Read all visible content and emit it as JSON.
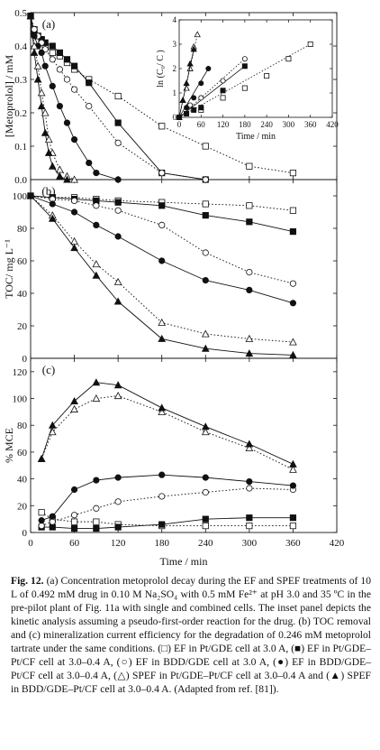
{
  "caption": {
    "label": "Fig. 12.",
    "text": "(a) Concentration metoprolol decay during the EF and SPEF treatments of 10 L of 0.492 mM drug in 0.10 M Na₂SO₄ with 0.5 mM Fe²⁺ at pH 3.0 and 35 ºC in the pre-pilot plant of Fig. 11a with single and combined cells. The inset panel depicts the kinetic analysis assuming a pseudo-first-order reaction for the drug. (b) TOC removal and (c) mineralization current efficiency for the degradation of 0.246 mM metoprolol tartrate under the same conditions. (□) EF in Pt/GDE cell at 3.0 A, (■) EF in Pt/GDE–Pt/CF cell at 3.0–0.4 A, (○) EF in BDD/GDE cell at 3.0 A, (●) EF in BDD/GDE–Pt/CF cell at 3.0–0.4 A, (△) SPEF in Pt/GDE–Pt/CF cell at 3.0–0.4 A and (▲) SPEF in BDD/GDE–Pt/CF cell at 3.0–0.4 A. (Adapted from ref. [81])."
  },
  "chart_data": [
    {
      "panel": "(a)",
      "type": "line",
      "ylabel": "[Metoprolol] / mM",
      "xlim": [
        0,
        420
      ],
      "ylim": [
        0,
        0.5
      ],
      "xticks": [],
      "yticks": [
        "0.0",
        "0.1",
        "0.2",
        "0.3",
        "0.4",
        "0.5"
      ],
      "series": [
        {
          "marker": "square-open",
          "line": "dotted",
          "x": [
            0,
            5,
            10,
            15,
            20,
            30,
            40,
            50,
            60,
            80,
            120,
            180,
            240,
            300,
            360
          ],
          "y": [
            0.49,
            0.45,
            0.43,
            0.42,
            0.4,
            0.38,
            0.37,
            0.35,
            0.33,
            0.3,
            0.25,
            0.16,
            0.1,
            0.04,
            0.02
          ]
        },
        {
          "marker": "square-filled",
          "line": "solid",
          "x": [
            0,
            5,
            10,
            15,
            20,
            30,
            40,
            50,
            60,
            80,
            120,
            180,
            240
          ],
          "y": [
            0.49,
            0.44,
            0.43,
            0.42,
            0.41,
            0.4,
            0.38,
            0.36,
            0.34,
            0.29,
            0.17,
            0.02,
            0.0
          ]
        },
        {
          "marker": "circle-open",
          "line": "dotted",
          "x": [
            0,
            5,
            10,
            15,
            20,
            30,
            40,
            50,
            60,
            80,
            120,
            180,
            240
          ],
          "y": [
            0.49,
            0.45,
            0.43,
            0.41,
            0.39,
            0.36,
            0.33,
            0.3,
            0.27,
            0.22,
            0.11,
            0.02,
            0.0
          ]
        },
        {
          "marker": "circle-filled",
          "line": "solid",
          "x": [
            0,
            5,
            10,
            15,
            20,
            30,
            40,
            50,
            60,
            80,
            90,
            120
          ],
          "y": [
            0.49,
            0.43,
            0.4,
            0.38,
            0.34,
            0.28,
            0.22,
            0.17,
            0.12,
            0.05,
            0.02,
            0.0
          ]
        },
        {
          "marker": "triangle-open",
          "line": "dotted",
          "x": [
            0,
            5,
            10,
            15,
            20,
            25,
            30,
            40,
            50,
            60
          ],
          "y": [
            0.49,
            0.4,
            0.34,
            0.26,
            0.2,
            0.12,
            0.08,
            0.03,
            0.01,
            0.0
          ]
        },
        {
          "marker": "triangle-filled",
          "line": "solid",
          "x": [
            0,
            5,
            10,
            15,
            20,
            25,
            30,
            40,
            50
          ],
          "y": [
            0.49,
            0.38,
            0.3,
            0.22,
            0.14,
            0.08,
            0.04,
            0.01,
            0.0
          ]
        }
      ],
      "inset": {
        "type": "scatter",
        "xlabel": "Time / min",
        "ylabel": "ln (C₀/ C )",
        "xlim": [
          0,
          420
        ],
        "ylim": [
          0,
          4
        ],
        "xticks": [
          "0",
          "60",
          "120",
          "180",
          "240",
          "300",
          "360",
          "420"
        ],
        "yticks": [
          "0",
          "1",
          "2",
          "3",
          "4"
        ],
        "series": [
          {
            "marker": "square-open",
            "line": "dotted",
            "x": [
              0,
              60,
              120,
              180,
              240,
              300,
              360
            ],
            "y": [
              0,
              0.3,
              0.8,
              1.2,
              1.7,
              2.4,
              3.0
            ]
          },
          {
            "marker": "square-filled",
            "line": "solid",
            "x": [
              0,
              20,
              40,
              60,
              120,
              180
            ],
            "y": [
              0,
              0.15,
              0.3,
              0.4,
              1.1,
              2.1
            ]
          },
          {
            "marker": "circle-open",
            "line": "dotted",
            "x": [
              0,
              30,
              60,
              120,
              180
            ],
            "y": [
              0,
              0.5,
              0.8,
              1.5,
              2.4
            ]
          },
          {
            "marker": "circle-filled",
            "line": "solid",
            "x": [
              0,
              20,
              40,
              60,
              80
            ],
            "y": [
              0,
              0.4,
              0.8,
              1.4,
              2.0
            ]
          },
          {
            "marker": "triangle-open",
            "line": "dotted",
            "x": [
              0,
              10,
              20,
              30,
              40,
              50
            ],
            "y": [
              0,
              0.7,
              1.2,
              2.0,
              2.9,
              3.4
            ]
          },
          {
            "marker": "triangle-filled",
            "line": "solid",
            "x": [
              0,
              10,
              20,
              30,
              40
            ],
            "y": [
              0,
              0.7,
              1.4,
              2.2,
              2.8
            ]
          }
        ]
      }
    },
    {
      "panel": "(b)",
      "type": "line",
      "ylabel": "TOC/ mg L⁻¹",
      "xlim": [
        0,
        420
      ],
      "ylim": [
        0,
        110
      ],
      "xticks": [],
      "yticks": [
        "0",
        "20",
        "40",
        "60",
        "80",
        "100"
      ],
      "series": [
        {
          "marker": "square-open",
          "line": "dotted",
          "x": [
            0,
            30,
            60,
            90,
            120,
            180,
            240,
            300,
            360
          ],
          "y": [
            100,
            99,
            99,
            98,
            97,
            96,
            95,
            94,
            91
          ]
        },
        {
          "marker": "square-filled",
          "line": "solid",
          "x": [
            0,
            30,
            60,
            90,
            120,
            180,
            240,
            300,
            360
          ],
          "y": [
            100,
            99,
            98,
            97,
            96,
            94,
            88,
            84,
            78
          ]
        },
        {
          "marker": "circle-open",
          "line": "dotted",
          "x": [
            0,
            30,
            60,
            90,
            120,
            180,
            240,
            300,
            360
          ],
          "y": [
            100,
            98,
            97,
            94,
            91,
            82,
            65,
            53,
            46
          ]
        },
        {
          "marker": "circle-filled",
          "line": "solid",
          "x": [
            0,
            30,
            60,
            90,
            120,
            180,
            240,
            300,
            360
          ],
          "y": [
            100,
            95,
            90,
            82,
            75,
            60,
            48,
            42,
            34
          ]
        },
        {
          "marker": "triangle-open",
          "line": "dotted",
          "x": [
            0,
            30,
            60,
            90,
            120,
            180,
            240,
            300,
            360
          ],
          "y": [
            100,
            88,
            72,
            58,
            47,
            22,
            15,
            12,
            10
          ]
        },
        {
          "marker": "triangle-filled",
          "line": "solid",
          "x": [
            0,
            30,
            60,
            90,
            120,
            180,
            240,
            300,
            360
          ],
          "y": [
            100,
            86,
            68,
            51,
            35,
            12,
            6,
            3,
            2
          ]
        }
      ]
    },
    {
      "panel": "(c)",
      "type": "line",
      "ylabel": "% MCE",
      "xlabel": "Time / min",
      "xlim": [
        0,
        420
      ],
      "ylim": [
        0,
        130
      ],
      "xticks": [
        "0",
        "60",
        "120",
        "180",
        "240",
        "300",
        "360",
        "420"
      ],
      "yticks": [
        "0",
        "20",
        "40",
        "60",
        "80",
        "100",
        "120"
      ],
      "series": [
        {
          "marker": "square-open",
          "line": "dotted",
          "x": [
            15,
            30,
            60,
            90,
            120,
            180,
            240,
            300,
            360
          ],
          "y": [
            15,
            10,
            8,
            8,
            6,
            5,
            5,
            5,
            5
          ]
        },
        {
          "marker": "square-filled",
          "line": "solid",
          "x": [
            15,
            30,
            60,
            90,
            120,
            180,
            240,
            300,
            360
          ],
          "y": [
            4,
            4,
            3,
            3,
            4,
            6,
            10,
            11,
            11
          ]
        },
        {
          "marker": "circle-open",
          "line": "dotted",
          "x": [
            15,
            30,
            60,
            90,
            120,
            180,
            240,
            300,
            360
          ],
          "y": [
            5,
            8,
            13,
            18,
            23,
            27,
            30,
            33,
            32
          ]
        },
        {
          "marker": "circle-filled",
          "line": "solid",
          "x": [
            15,
            30,
            60,
            90,
            120,
            180,
            240,
            300,
            360
          ],
          "y": [
            9,
            12,
            32,
            39,
            41,
            43,
            41,
            38,
            35
          ]
        },
        {
          "marker": "triangle-open",
          "line": "dotted",
          "x": [
            15,
            30,
            60,
            90,
            120,
            180,
            240,
            300,
            360
          ],
          "y": [
            55,
            75,
            92,
            100,
            102,
            90,
            75,
            63,
            47
          ]
        },
        {
          "marker": "triangle-filled",
          "line": "solid",
          "x": [
            15,
            30,
            60,
            90,
            120,
            180,
            240,
            300,
            360
          ],
          "y": [
            55,
            80,
            98,
            112,
            110,
            93,
            79,
            66,
            51
          ]
        }
      ]
    }
  ]
}
